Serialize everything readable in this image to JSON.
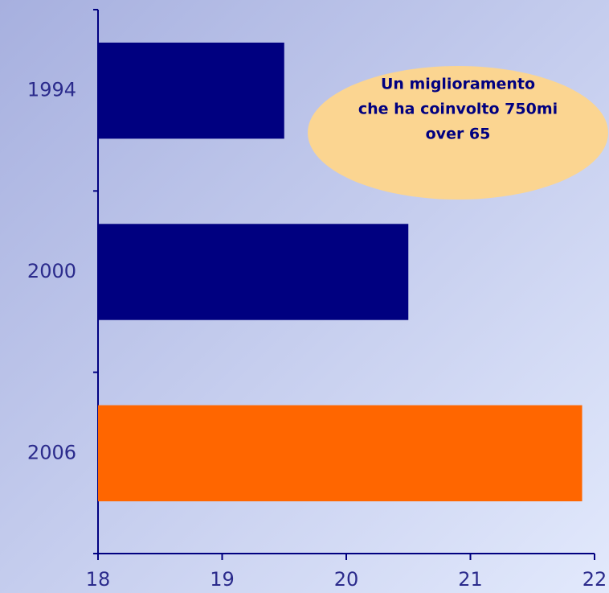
{
  "chart_data": {
    "type": "barh",
    "categories": [
      "1994",
      "2000",
      "2006"
    ],
    "values": [
      19.5,
      20.5,
      21.9
    ],
    "colors": [
      "#000080",
      "#000080",
      "#ff6600"
    ],
    "xlim": [
      18,
      22
    ],
    "xticks": [
      18,
      19,
      20,
      21,
      22
    ],
    "annotation": [
      "Un miglioramento",
      "che ha coinvolto 750mi",
      "over 65"
    ]
  }
}
